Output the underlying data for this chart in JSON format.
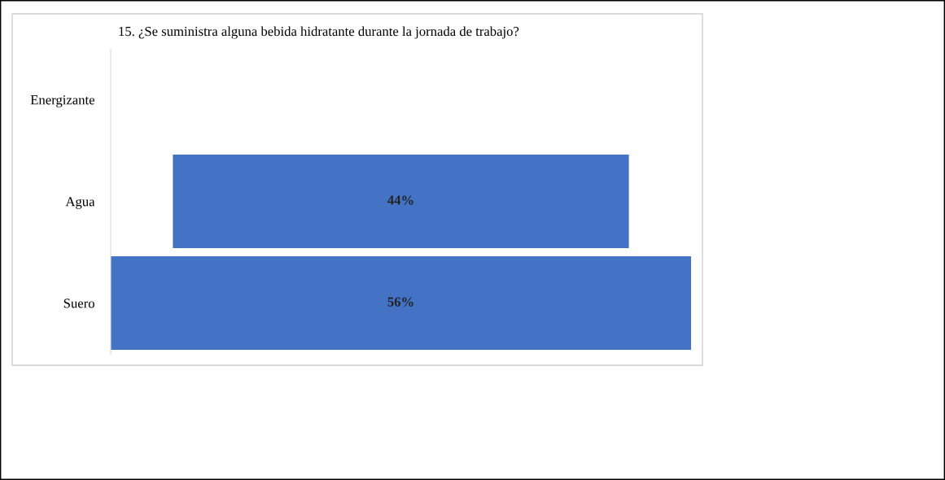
{
  "chart_data": {
    "type": "other",
    "title": "15. ¿Se suministra alguna bebida hidratante durante la jornada de trabajo?",
    "categories": [
      "Energizante",
      "Agua",
      "Suero"
    ],
    "values": [
      null,
      44,
      56
    ],
    "value_labels": [
      null,
      "44%",
      "56%"
    ],
    "color": "#4472c4",
    "legend": false
  }
}
